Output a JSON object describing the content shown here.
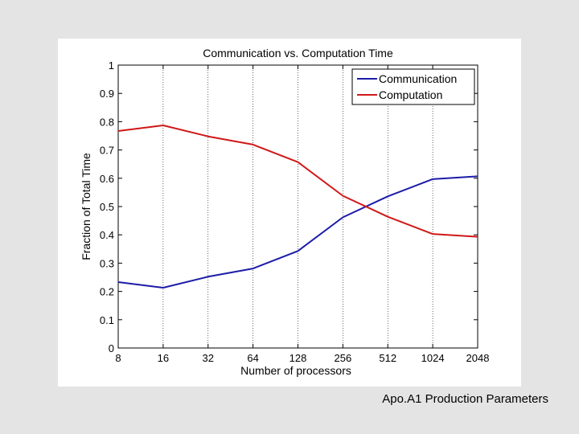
{
  "slide": {
    "caption": "Apo.A1 Production Parameters",
    "background": "#e4e4e4"
  },
  "chart_data": {
    "type": "line",
    "title": "Communication vs. Computation Time",
    "xlabel": "Number of processors",
    "ylabel": "Fraction of Total Time",
    "x": [
      "8",
      "16",
      "32",
      "64",
      "128",
      "256",
      "512",
      "1024",
      "2048"
    ],
    "x_scale": "log2",
    "ylim": [
      0,
      1
    ],
    "yticks": [
      "0",
      "0.1",
      "0.2",
      "0.3",
      "0.4",
      "0.5",
      "0.6",
      "0.7",
      "0.8",
      "0.9",
      "1"
    ],
    "ytick_values": [
      0,
      0.1,
      0.2,
      0.3,
      0.4,
      0.5,
      0.6,
      0.7,
      0.8,
      0.9,
      1
    ],
    "grid": "x-only, dotted",
    "legend_position": "top-right",
    "series": [
      {
        "name": "Communication",
        "color": "#1c1ca8",
        "values": [
          0.233,
          0.213,
          0.252,
          0.281,
          0.343,
          0.462,
          0.536,
          0.597,
          0.607
        ]
      },
      {
        "name": "Computation",
        "color": "#d01818",
        "values": [
          0.767,
          0.787,
          0.748,
          0.719,
          0.657,
          0.538,
          0.464,
          0.403,
          0.393
        ]
      }
    ]
  }
}
